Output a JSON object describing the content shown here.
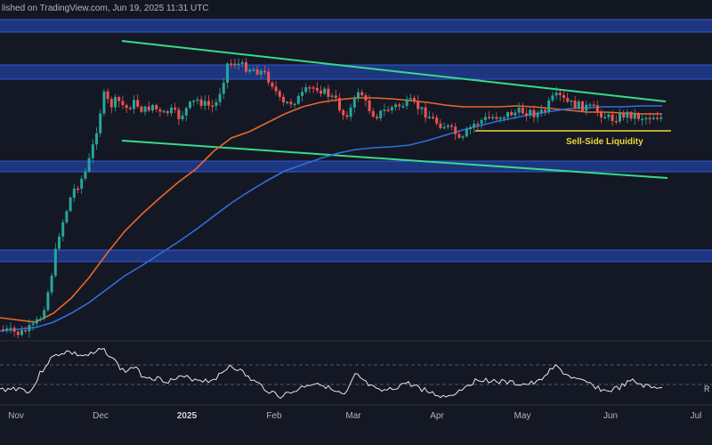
{
  "header": {
    "text": "lished on TradingView.com, Jun 19, 2025 11:31 UTC"
  },
  "colors": {
    "background": "#141824",
    "zone": "#1f3c8f",
    "zone_edge": "#2f5ad6",
    "channel": "#38d98a",
    "ema_orange": "#e8672c",
    "ema_blue": "#2f6fe0",
    "support": "#f0d43a",
    "candle_up": "#26a69a",
    "candle_down": "#ef5350",
    "rsi": "#e6e8ee"
  },
  "chart_data": {
    "type": "candlestick",
    "x_axis_labels": [
      "Nov",
      "Dec",
      "2025",
      "Feb",
      "Mar",
      "Apr",
      "May",
      "Jun",
      "Jul"
    ],
    "annotations": [
      {
        "text": "Sell-Side Liquidity"
      }
    ],
    "rsi_panel": {
      "label": "R",
      "levels_dashed": 2
    },
    "series": [
      {
        "kind": "candles",
        "ohlc_trend": "Nov rally then range Dec–Jun inside descending channel"
      },
      {
        "kind": "ema",
        "color": "orange"
      },
      {
        "kind": "ema",
        "color": "blue"
      }
    ]
  }
}
